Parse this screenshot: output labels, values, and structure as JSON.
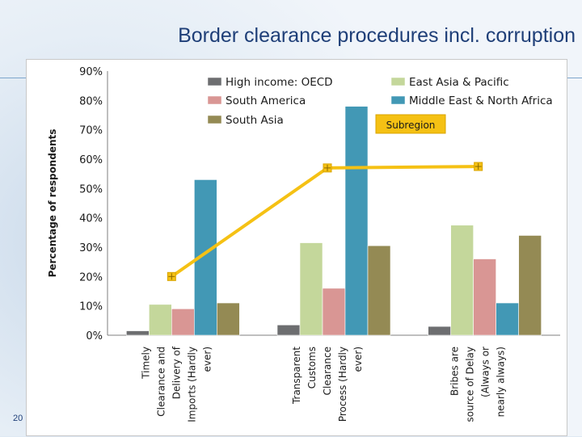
{
  "slide": {
    "title": "Border clearance procedures incl. corruption",
    "page_number": "20"
  },
  "chart_data": {
    "type": "bar",
    "title": "Border clearance procedures incl. corruption",
    "ylabel": "Percentage of respondents",
    "xlabel": "",
    "ylim": [
      0,
      90
    ],
    "yticks": [
      "0%",
      "10%",
      "20%",
      "30%",
      "40%",
      "50%",
      "60%",
      "70%",
      "80%",
      "90%"
    ],
    "grid": false,
    "legend_position": "top",
    "categories": [
      [
        "Timely",
        "Clearance and",
        "Delivery of",
        "Imports (Hardly",
        "ever)"
      ],
      [
        "Transparent",
        "Customs",
        "Clearance",
        "Process (Hardly",
        "ever)"
      ],
      [
        "Bribes are",
        "source of Delay",
        "(Always or",
        "nearly always)"
      ]
    ],
    "series": [
      {
        "name": "High income: OECD",
        "color": "#6d6e70",
        "values": [
          1.5,
          3.5,
          3.0
        ]
      },
      {
        "name": "East Asia & Pacific",
        "color": "#c4d79b",
        "values": [
          10.5,
          31.5,
          37.5
        ]
      },
      {
        "name": "South America",
        "color": "#d99694",
        "values": [
          9.0,
          16.0,
          26.0
        ]
      },
      {
        "name": "Middle East & North Africa",
        "color": "#4298b5",
        "values": [
          53.0,
          78.0,
          11.0
        ]
      },
      {
        "name": "South Asia",
        "color": "#948a54",
        "values": [
          11.0,
          30.5,
          34.0
        ]
      }
    ],
    "line": {
      "name": "Subregion",
      "color": "#f5c114",
      "values": [
        20.0,
        57.0,
        57.5
      ]
    },
    "annotation": "Subregion"
  }
}
